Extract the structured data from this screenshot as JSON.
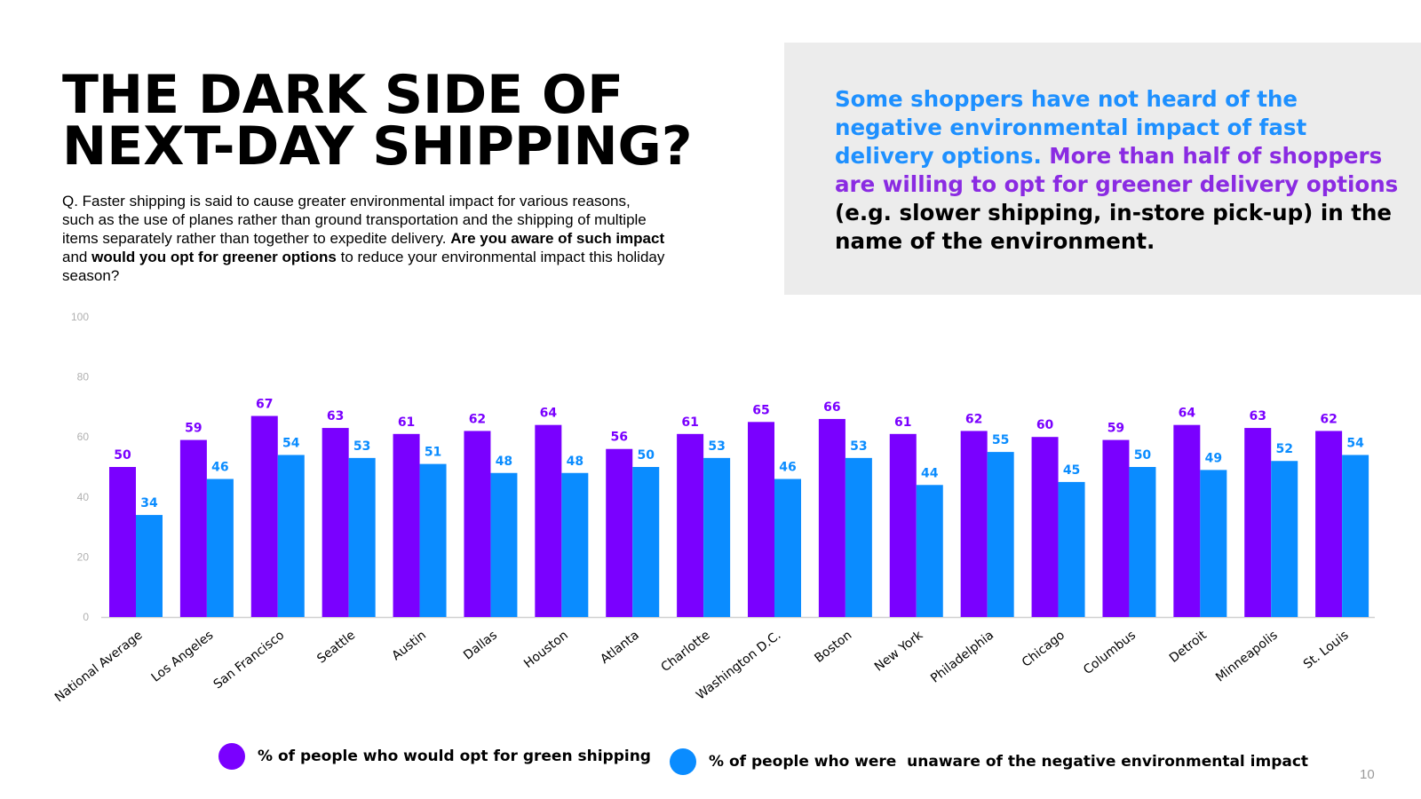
{
  "title": {
    "line1": "THE DARK SIDE OF",
    "line2": "NEXT-DAY SHIPPING?"
  },
  "question": {
    "part1": "Q. Faster shipping is said to cause greater environmental impact for various reasons, such as the use of planes rather than ground transportation and the shipping of multiple items separately rather than together to expedite delivery.",
    "bold1": "Are you aware of such impact",
    "part2": "and",
    "bold2": "would you opt for greener options",
    "part3": "to reduce your environmental impact this holiday season?"
  },
  "insight": {
    "part1": "Some shoppers have not heard of the negative environmental impact of fast delivery options.",
    "part2": "More than half of shoppers are willing to opt for greener delivery options",
    "part3": "(e.g. slower shipping, in-store pick-up) in the name of the environment."
  },
  "colors": {
    "green_shipping": "#7a00ff",
    "unaware": "#0a8cff",
    "insight_blue": "#1e90ff",
    "insight_purple": "#8a2be2",
    "axis_text": "#b0b0b0"
  },
  "page_number": "10",
  "chart_data": {
    "type": "bar",
    "ylim": [
      0,
      100
    ],
    "yticks": [
      0,
      20,
      40,
      60,
      80,
      100
    ],
    "grid": false,
    "legend_position": "bottom",
    "categories": [
      "National Average",
      "Los Angeles",
      "San Francisco",
      "Seattle",
      "Austin",
      "Dallas",
      "Houston",
      "Atlanta",
      "Charlotte",
      "Washington D.C.",
      "Boston",
      "New York",
      "Philadelphia",
      "Chicago",
      "Columbus",
      "Detroit",
      "Minneapolis",
      "St. Louis"
    ],
    "series": [
      {
        "name": "% of people who would opt for green shipping",
        "color": "#7a00ff",
        "values": [
          50,
          59,
          67,
          63,
          61,
          62,
          64,
          56,
          61,
          65,
          66,
          61,
          62,
          60,
          59,
          64,
          63,
          62
        ]
      },
      {
        "name": "% of people who were  unaware of the negative environmental impact",
        "color": "#0a8cff",
        "values": [
          34,
          46,
          54,
          53,
          51,
          48,
          48,
          50,
          53,
          46,
          53,
          44,
          55,
          45,
          50,
          49,
          52,
          54
        ]
      }
    ]
  }
}
